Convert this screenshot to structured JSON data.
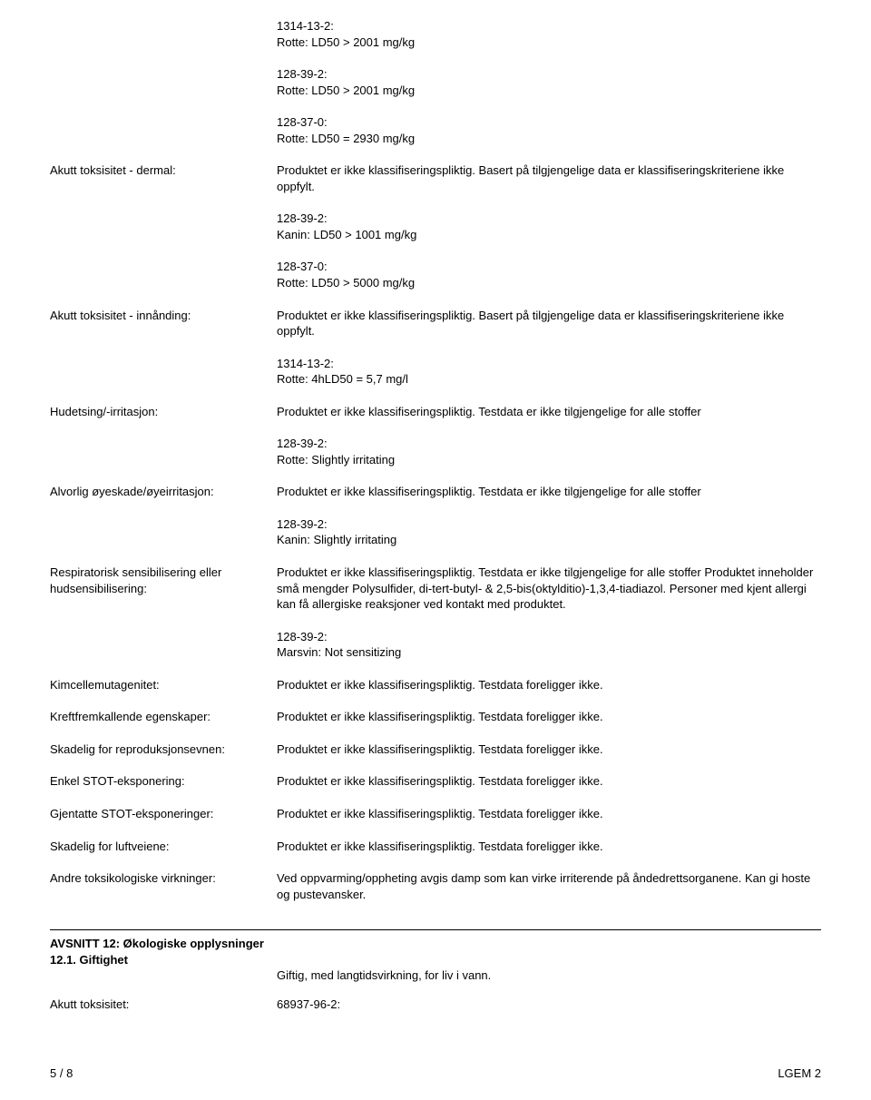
{
  "top_blocks": [
    {
      "cas": "1314-13-2:",
      "line": "Rotte: LD50 > 2001 mg/kg"
    },
    {
      "cas": "128-39-2:",
      "line": "Rotte: LD50 > 2001 mg/kg"
    },
    {
      "cas": "128-37-0:",
      "line": "Rotte: LD50 = 2930 mg/kg"
    }
  ],
  "dermal": {
    "label": "Akutt toksisitet - dermal:",
    "text": "Produktet er ikke klassifiseringspliktig. Basert på tilgjengelige data er klassifiseringskriteriene ikke oppfylt.",
    "sub": [
      {
        "cas": "128-39-2:",
        "line": "Kanin: LD50 > 1001 mg/kg"
      },
      {
        "cas": "128-37-0:",
        "line": "Rotte: LD50 > 5000 mg/kg"
      }
    ]
  },
  "inhalation": {
    "label": "Akutt toksisitet - innånding:",
    "text": "Produktet er ikke klassifiseringspliktig. Basert på tilgjengelige data er klassifiseringskriteriene ikke oppfylt.",
    "sub": [
      {
        "cas": "1314-13-2:",
        "line": "Rotte: 4hLD50 = 5,7 mg/l"
      }
    ]
  },
  "skin_irr": {
    "label": "Hudetsing/-irritasjon:",
    "text": "Produktet er ikke klassifiseringspliktig. Testdata er ikke tilgjengelige for alle stoffer",
    "sub": [
      {
        "cas": "128-39-2:",
        "line": "Rotte: Slightly irritating"
      }
    ]
  },
  "eye_irr": {
    "label": "Alvorlig øyeskade/øyeirritasjon:",
    "text": "Produktet er ikke klassifiseringspliktig. Testdata er ikke tilgjengelige for alle stoffer",
    "sub": [
      {
        "cas": "128-39-2:",
        "line": "Kanin: Slightly irritating"
      }
    ]
  },
  "resp_sens": {
    "label": "Respiratorisk sensibilisering eller hudsensibilisering:",
    "text": "Produktet er ikke klassifiseringspliktig. Testdata er ikke tilgjengelige for alle stoffer  Produktet inneholder små mengder Polysulfider, di-tert-butyl- & 2,5-bis(oktylditio)-1,3,4-tiadiazol. Personer med kjent allergi kan få allergiske reaksjoner ved kontakt med produktet.",
    "sub": [
      {
        "cas": "128-39-2:",
        "line": "Marsvin: Not sensitizing"
      }
    ]
  },
  "simple_rows": [
    {
      "label": "Kimcellemutagenitet:",
      "text": "Produktet er ikke klassifiseringspliktig. Testdata foreligger ikke."
    },
    {
      "label": "Kreftfremkallende egenskaper:",
      "text": "Produktet er ikke klassifiseringspliktig. Testdata foreligger ikke."
    },
    {
      "label": "Skadelig for reproduksjonsevnen:",
      "text": "Produktet er ikke klassifiseringspliktig. Testdata foreligger ikke."
    },
    {
      "label": "Enkel STOT-eksponering:",
      "text": "Produktet er ikke klassifiseringspliktig. Testdata foreligger ikke."
    },
    {
      "label": "Gjentatte STOT-eksponeringer:",
      "text": "Produktet er ikke klassifiseringspliktig. Testdata foreligger ikke."
    },
    {
      "label": "Skadelig for luftveiene:",
      "text": "Produktet er ikke klassifiseringspliktig. Testdata foreligger ikke."
    },
    {
      "label": "Andre toksikologiske virkninger:",
      "text": "Ved oppvarming/oppheting avgis damp som kan virke irriterende på åndedrettsorganene. Kan gi hoste og pustevansker."
    }
  ],
  "section12": {
    "heading": "AVSNITT 12: Økologiske opplysninger",
    "sub": "12.1. Giftighet",
    "intro": "Giftig, med langtidsvirkning, for liv i vann.",
    "row_label": "Akutt toksisitet:",
    "row_value": "68937-96-2:"
  },
  "footer": {
    "left": "5 / 8",
    "right": "LGEM 2"
  }
}
